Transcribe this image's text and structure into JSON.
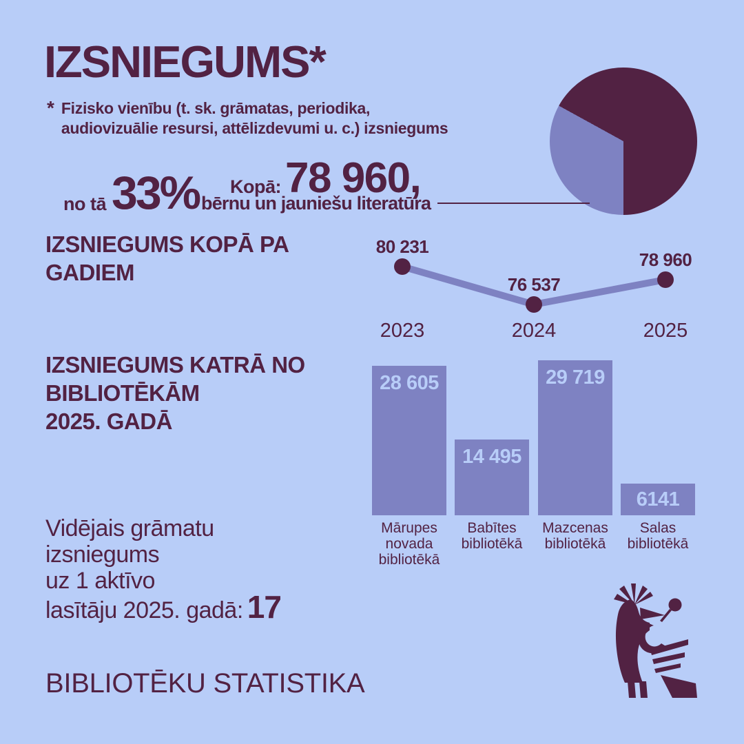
{
  "colors": {
    "background": "#b8cdf8",
    "dark": "#522243",
    "purple": "#7e82c2"
  },
  "header": {
    "title": "IZSNIEGUMS*",
    "footnote_marker": "*",
    "footnote_lines": [
      "Fizisko vienību (t. sk. grāmatas, periodika,",
      "audiovizuālie resursi, attēlizdevumi u. c.) izsniegums"
    ]
  },
  "highlight": {
    "prefix": "no tā",
    "percent": "33%",
    "total_label": "Kopā:",
    "total_value": "78 960,",
    "description": "bērnu un jauniešu literatūra"
  },
  "sections": {
    "years": {
      "heading_lines": [
        "IZSNIEGUMS KOPĀ PA",
        "GADIEM"
      ]
    },
    "libraries": {
      "heading_lines": [
        "IZSNIEGUMS KATRĀ NO",
        "BIBLIOTĒKĀM",
        "2025. GADĀ"
      ]
    }
  },
  "average": {
    "lines": [
      "Vidējais grāmatu",
      "izsniegums",
      "uz 1 aktīvo"
    ],
    "last_line_prefix": "lasītāju 2025. gadā:",
    "value": "17"
  },
  "footer": {
    "text": "BIBLIOTĒKU STATISTIKA"
  },
  "chart_data": [
    {
      "type": "pie",
      "name": "children-literature-share",
      "values": [
        33,
        67
      ],
      "labels": [
        "bērnu un jauniešu literatūra",
        ""
      ],
      "colors": [
        "#7e82c2",
        "#522243"
      ],
      "start_angle_deg": 180,
      "total_label": "Kopā: 78 960"
    },
    {
      "type": "line",
      "name": "izsniegums-by-year",
      "title": "IZSNIEGUMS KOPĀ PA GADIEM",
      "categories": [
        "2023",
        "2024",
        "2025"
      ],
      "values": [
        80231,
        76537,
        78960
      ],
      "value_labels": [
        "80 231",
        "76 537",
        "78 960"
      ],
      "line_color": "#7e82c2",
      "point_color": "#522243",
      "grid": false,
      "legend": false
    },
    {
      "type": "bar",
      "name": "izsniegums-by-library-2025",
      "title": "IZSNIEGUMS KATRĀ NO BIBLIOTĒKĀM 2025. GADĀ",
      "categories": [
        [
          "Mārupes",
          "novada",
          "bibliotēkā"
        ],
        [
          "Babītes",
          "bibliotēkā"
        ],
        [
          "Mazcenas",
          "bibliotēkā"
        ],
        [
          "Salas",
          "bibliotēkā"
        ]
      ],
      "values": [
        28605,
        14495,
        29719,
        6141
      ],
      "value_labels": [
        "28 605",
        "14 495",
        "29 719",
        "6141"
      ],
      "bar_color": "#7e82c2",
      "value_label_color": "#b8cdf8",
      "ylim": [
        0,
        29719
      ],
      "grid": false,
      "legend": false
    }
  ]
}
